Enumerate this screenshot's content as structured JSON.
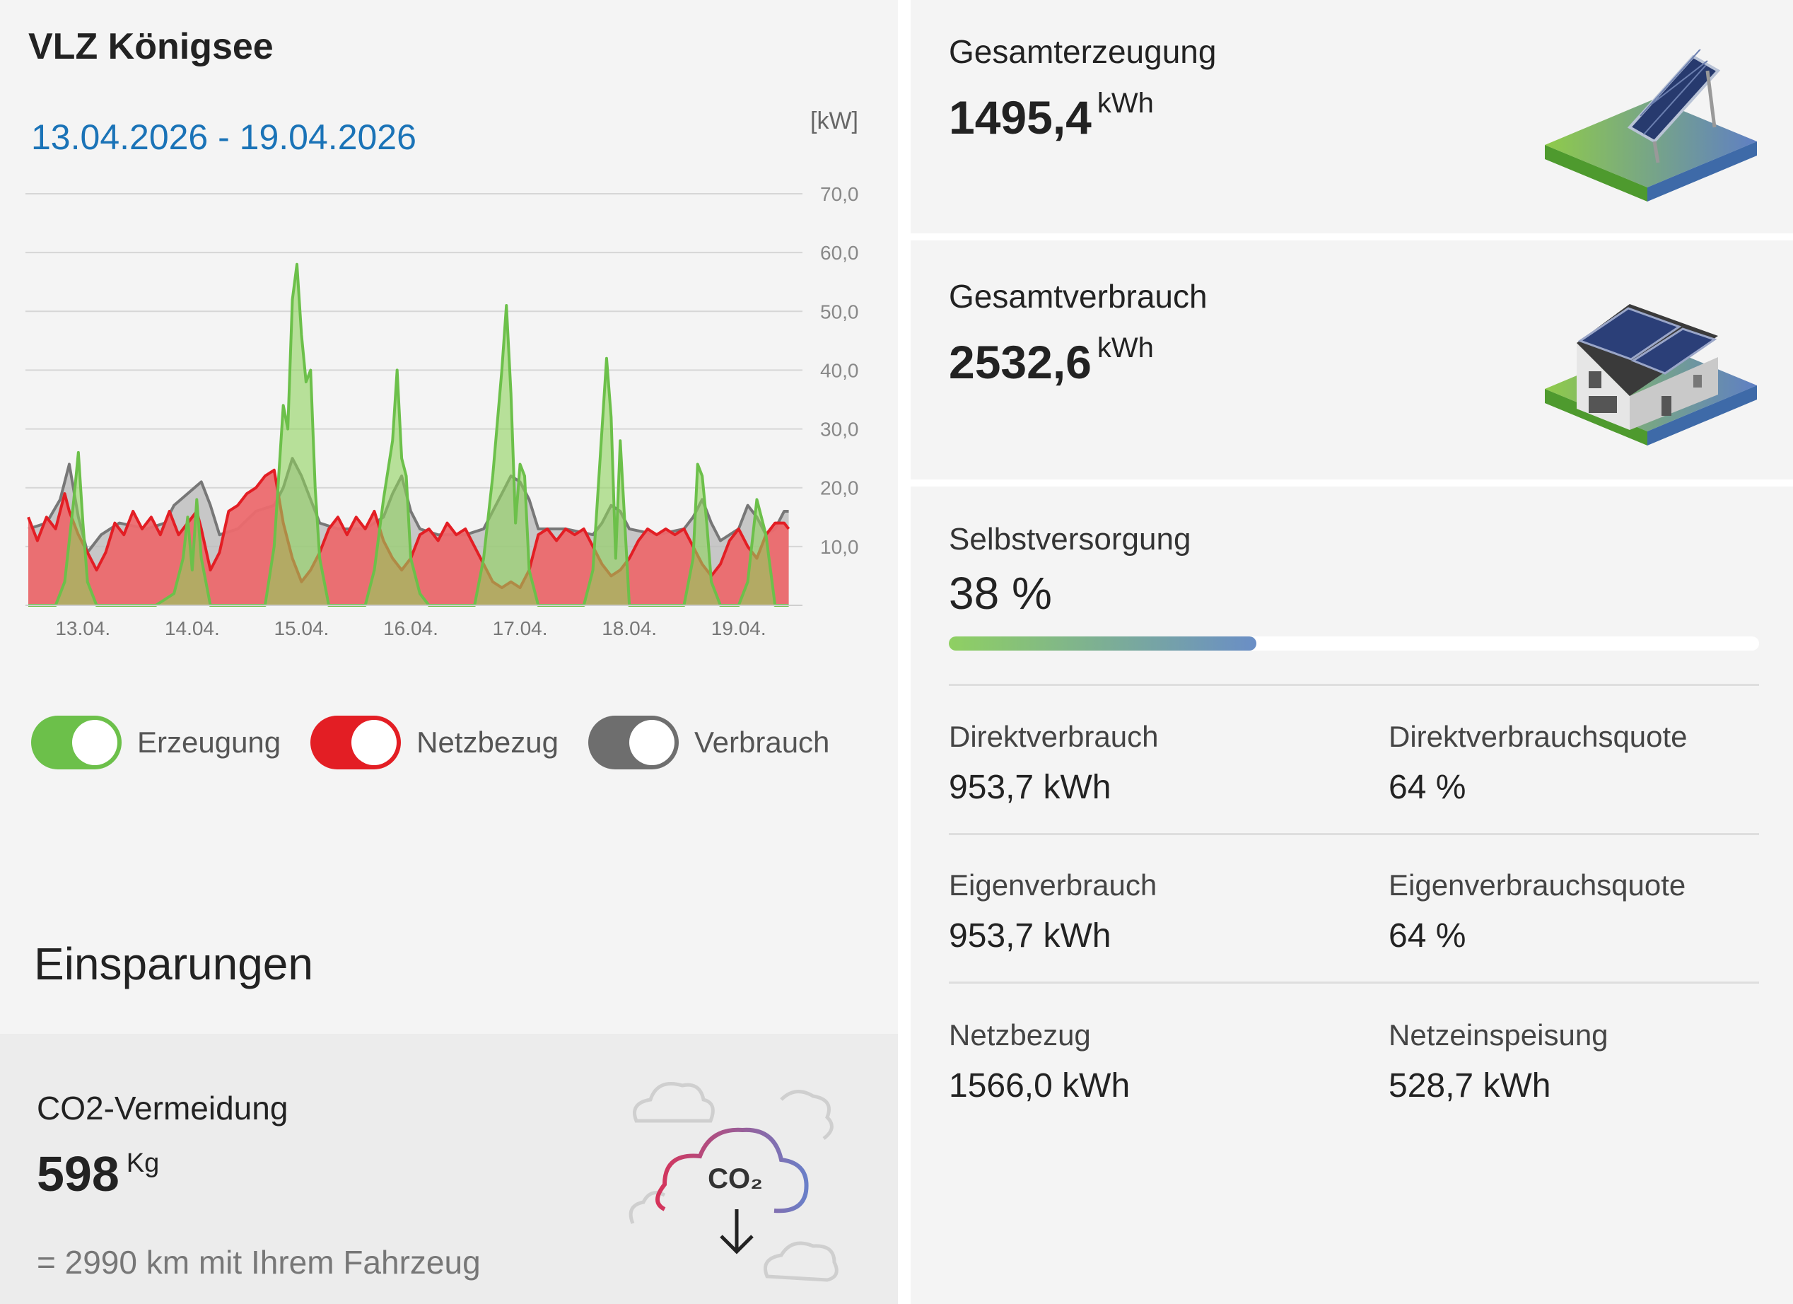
{
  "header": {
    "title": "VLZ Königsee",
    "date_range": "13.04.2026 - 19.04.2026",
    "unit": "[kW]"
  },
  "chart_data": {
    "type": "area",
    "title": "",
    "xlabel": "",
    "ylabel": "[kW]",
    "ylim": [
      0,
      70
    ],
    "xlim": [
      0,
      168
    ],
    "y_ticks": [
      "10,0",
      "20,0",
      "30,0",
      "40,0",
      "50,0",
      "60,0",
      "70,0"
    ],
    "x_ticks": [
      {
        "label": "13.04.",
        "x": 12
      },
      {
        "label": "14.04.",
        "x": 36
      },
      {
        "label": "15.04.",
        "x": 60
      },
      {
        "label": "16.04.",
        "x": 84
      },
      {
        "label": "17.04.",
        "x": 108
      },
      {
        "label": "18.04.",
        "x": 132
      },
      {
        "label": "19.04.",
        "x": 156
      }
    ],
    "grid": true,
    "series": [
      {
        "name": "Verbrauch",
        "color": "#777777",
        "points": [
          [
            0,
            13
          ],
          [
            4,
            14
          ],
          [
            7,
            18
          ],
          [
            9,
            24
          ],
          [
            11,
            15
          ],
          [
            13,
            9
          ],
          [
            16,
            12
          ],
          [
            20,
            14
          ],
          [
            26,
            13
          ],
          [
            30,
            14
          ],
          [
            32,
            17
          ],
          [
            35,
            19
          ],
          [
            38,
            21
          ],
          [
            40,
            17
          ],
          [
            42,
            12
          ],
          [
            46,
            13
          ],
          [
            50,
            16
          ],
          [
            54,
            17
          ],
          [
            56,
            20
          ],
          [
            58,
            25
          ],
          [
            60,
            22
          ],
          [
            64,
            14
          ],
          [
            68,
            13
          ],
          [
            74,
            13
          ],
          [
            78,
            15
          ],
          [
            80,
            19
          ],
          [
            82,
            22
          ],
          [
            84,
            16
          ],
          [
            86,
            13
          ],
          [
            90,
            12
          ],
          [
            96,
            12
          ],
          [
            100,
            13
          ],
          [
            102,
            16
          ],
          [
            104,
            19
          ],
          [
            106,
            22
          ],
          [
            108,
            21
          ],
          [
            110,
            18
          ],
          [
            112,
            13
          ],
          [
            118,
            13
          ],
          [
            124,
            12
          ],
          [
            126,
            14
          ],
          [
            128,
            17
          ],
          [
            130,
            16
          ],
          [
            132,
            13
          ],
          [
            138,
            12
          ],
          [
            144,
            13
          ],
          [
            146,
            15
          ],
          [
            148,
            18
          ],
          [
            150,
            14
          ],
          [
            152,
            11
          ],
          [
            156,
            13
          ],
          [
            158,
            17
          ],
          [
            160,
            15
          ],
          [
            162,
            12
          ],
          [
            164,
            13
          ],
          [
            166,
            16
          ],
          [
            167,
            16
          ]
        ]
      },
      {
        "name": "Netzbezug",
        "color": "#e31e24",
        "points": [
          [
            0,
            15
          ],
          [
            2,
            11
          ],
          [
            4,
            15
          ],
          [
            6,
            13
          ],
          [
            8,
            19
          ],
          [
            9,
            16
          ],
          [
            11,
            12
          ],
          [
            13,
            9
          ],
          [
            15,
            6
          ],
          [
            17,
            9
          ],
          [
            19,
            14
          ],
          [
            21,
            12
          ],
          [
            23,
            16
          ],
          [
            25,
            13
          ],
          [
            27,
            15
          ],
          [
            29,
            12
          ],
          [
            31,
            16
          ],
          [
            33,
            12
          ],
          [
            35,
            14
          ],
          [
            37,
            16
          ],
          [
            38,
            13
          ],
          [
            40,
            6
          ],
          [
            42,
            9
          ],
          [
            44,
            16
          ],
          [
            46,
            17
          ],
          [
            48,
            19
          ],
          [
            50,
            20
          ],
          [
            52,
            22
          ],
          [
            54,
            23
          ],
          [
            56,
            14
          ],
          [
            58,
            8
          ],
          [
            60,
            4
          ],
          [
            62,
            6
          ],
          [
            64,
            9
          ],
          [
            66,
            13
          ],
          [
            68,
            15
          ],
          [
            70,
            12
          ],
          [
            72,
            15
          ],
          [
            74,
            13
          ],
          [
            76,
            16
          ],
          [
            78,
            11
          ],
          [
            80,
            8
          ],
          [
            82,
            6
          ],
          [
            84,
            8
          ],
          [
            86,
            12
          ],
          [
            88,
            13
          ],
          [
            90,
            11
          ],
          [
            92,
            14
          ],
          [
            94,
            12
          ],
          [
            96,
            13
          ],
          [
            98,
            10
          ],
          [
            100,
            7
          ],
          [
            102,
            4
          ],
          [
            104,
            3
          ],
          [
            106,
            4
          ],
          [
            108,
            3
          ],
          [
            110,
            6
          ],
          [
            112,
            12
          ],
          [
            114,
            13
          ],
          [
            116,
            11
          ],
          [
            118,
            13
          ],
          [
            120,
            12
          ],
          [
            122,
            13
          ],
          [
            124,
            10
          ],
          [
            126,
            7
          ],
          [
            128,
            5
          ],
          [
            130,
            6
          ],
          [
            132,
            8
          ],
          [
            134,
            11
          ],
          [
            136,
            13
          ],
          [
            138,
            12
          ],
          [
            140,
            13
          ],
          [
            142,
            12
          ],
          [
            144,
            13
          ],
          [
            146,
            10
          ],
          [
            148,
            7
          ],
          [
            150,
            5
          ],
          [
            152,
            7
          ],
          [
            154,
            11
          ],
          [
            156,
            13
          ],
          [
            158,
            10
          ],
          [
            160,
            8
          ],
          [
            162,
            12
          ],
          [
            164,
            14
          ],
          [
            166,
            14
          ],
          [
            167,
            13
          ]
        ]
      },
      {
        "name": "Erzeugung",
        "color": "#6cc04a",
        "points": [
          [
            0,
            0
          ],
          [
            6,
            0
          ],
          [
            8,
            4
          ],
          [
            10,
            18
          ],
          [
            11,
            26
          ],
          [
            12,
            14
          ],
          [
            13,
            4
          ],
          [
            15,
            0
          ],
          [
            28,
            0
          ],
          [
            32,
            2
          ],
          [
            34,
            8
          ],
          [
            35,
            15
          ],
          [
            36,
            6
          ],
          [
            37,
            18
          ],
          [
            38,
            8
          ],
          [
            40,
            0
          ],
          [
            52,
            0
          ],
          [
            54,
            10
          ],
          [
            56,
            34
          ],
          [
            57,
            30
          ],
          [
            58,
            52
          ],
          [
            59,
            58
          ],
          [
            60,
            46
          ],
          [
            61,
            38
          ],
          [
            62,
            40
          ],
          [
            63,
            20
          ],
          [
            64,
            8
          ],
          [
            66,
            0
          ],
          [
            74,
            0
          ],
          [
            76,
            6
          ],
          [
            78,
            18
          ],
          [
            80,
            28
          ],
          [
            81,
            40
          ],
          [
            82,
            25
          ],
          [
            83,
            22
          ],
          [
            84,
            8
          ],
          [
            86,
            2
          ],
          [
            88,
            0
          ],
          [
            98,
            0
          ],
          [
            100,
            8
          ],
          [
            102,
            22
          ],
          [
            104,
            40
          ],
          [
            105,
            51
          ],
          [
            106,
            36
          ],
          [
            107,
            14
          ],
          [
            108,
            24
          ],
          [
            109,
            22
          ],
          [
            110,
            6
          ],
          [
            112,
            0
          ],
          [
            122,
            0
          ],
          [
            124,
            6
          ],
          [
            125,
            18
          ],
          [
            126,
            30
          ],
          [
            127,
            42
          ],
          [
            128,
            32
          ],
          [
            129,
            8
          ],
          [
            130,
            28
          ],
          [
            131,
            14
          ],
          [
            132,
            0
          ],
          [
            144,
            0
          ],
          [
            146,
            8
          ],
          [
            147,
            24
          ],
          [
            148,
            22
          ],
          [
            149,
            14
          ],
          [
            150,
            4
          ],
          [
            152,
            0
          ],
          [
            156,
            0
          ],
          [
            158,
            4
          ],
          [
            160,
            18
          ],
          [
            162,
            12
          ],
          [
            164,
            0
          ],
          [
            167,
            0
          ]
        ]
      }
    ]
  },
  "legend": {
    "items": [
      {
        "label": "Erzeugung",
        "color": "#6cc04a"
      },
      {
        "label": "Netzbezug",
        "color": "#e31e24"
      },
      {
        "label": "Verbrauch",
        "color": "#6e6e6e"
      }
    ]
  },
  "savings": {
    "heading": "Einsparungen",
    "co2_title": "CO2-Vermeidung",
    "co2_value": "598",
    "co2_unit": "Kg",
    "co2_equivalent": "= 2990 km mit Ihrem Fahrzeug",
    "co2_icon_label": "CO₂",
    "icon": "co2-cloud-icon"
  },
  "generation": {
    "label": "Gesamterzeugung",
    "value": "1495,4",
    "unit": "kWh",
    "icon": "solar-panel-icon"
  },
  "consumption": {
    "label": "Gesamtverbrauch",
    "value": "2532,6",
    "unit": "kWh",
    "icon": "house-solar-icon"
  },
  "self_supply": {
    "label": "Selbstversorgung",
    "value": "38 %",
    "percent": 38
  },
  "stats": [
    {
      "label": "Direktverbrauch",
      "value": "953,7 kWh"
    },
    {
      "label": "Direktverbrauchsquote",
      "value": "64 %"
    },
    {
      "label": "Eigenverbrauch",
      "value": "953,7 kWh"
    },
    {
      "label": "Eigenverbrauchsquote",
      "value": "64 %"
    },
    {
      "label": "Netzbezug",
      "value": "1566,0 kWh"
    },
    {
      "label": "Netzeinspeisung",
      "value": "528,7 kWh"
    }
  ]
}
